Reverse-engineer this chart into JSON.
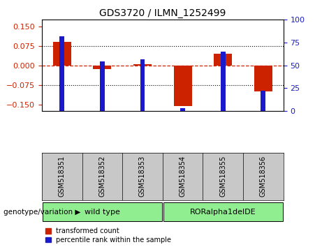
{
  "title": "GDS3720 / ILMN_1252499",
  "samples": [
    "GSM518351",
    "GSM518352",
    "GSM518353",
    "GSM518354",
    "GSM518355",
    "GSM518356"
  ],
  "red_values": [
    0.09,
    -0.015,
    0.005,
    -0.155,
    0.045,
    -0.1
  ],
  "blue_values_pct": [
    82,
    54,
    57,
    3,
    65,
    22
  ],
  "ylim_left": [
    -0.175,
    0.175
  ],
  "ylim_right": [
    0,
    100
  ],
  "yticks_left": [
    -0.15,
    -0.075,
    0,
    0.075,
    0.15
  ],
  "yticks_right": [
    0,
    25,
    50,
    75,
    100
  ],
  "red_color": "#CC2200",
  "blue_color": "#1A1ACC",
  "zero_line_color": "#CC2200",
  "bg_color": "white",
  "label_bg_color": "#C8C8C8",
  "group_color": "#90EE90",
  "groups": [
    {
      "label": "wild type",
      "start": 0,
      "end": 2
    },
    {
      "label": "RORalpha1delDE",
      "start": 3,
      "end": 5
    }
  ],
  "red_bar_width": 0.45,
  "blue_bar_width": 0.12,
  "legend_red": "transformed count",
  "legend_blue": "percentile rank within the sample",
  "genotype_label": "genotype/variation ▶"
}
